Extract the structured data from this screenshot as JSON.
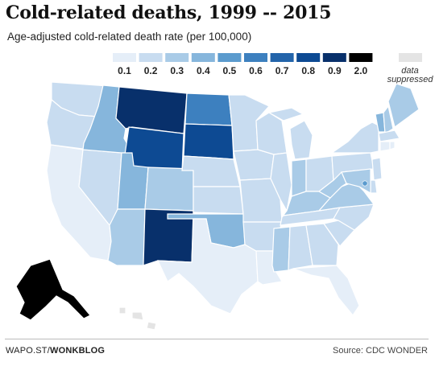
{
  "header": {
    "title": "Cold-related deaths, 1999 -- 2015",
    "subtitle": "Age-adjusted cold-related death rate (per 100,000)"
  },
  "legend": {
    "entries": [
      {
        "label": "0.1",
        "color": "#e5eef8"
      },
      {
        "label": "0.2",
        "color": "#c8dcf0"
      },
      {
        "label": "0.3",
        "color": "#a9cbe7"
      },
      {
        "label": "0.4",
        "color": "#86b6dc"
      },
      {
        "label": "0.5",
        "color": "#5b9bce"
      },
      {
        "label": "0.6",
        "color": "#3d80bf"
      },
      {
        "label": "0.7",
        "color": "#2364aa"
      },
      {
        "label": "0.8",
        "color": "#0d4a93"
      },
      {
        "label": "0.9",
        "color": "#08306b"
      },
      {
        "label": "2.0",
        "color": "#000000"
      }
    ],
    "suppressed": {
      "label_line1": "data",
      "label_line2": "suppressed",
      "color": "#e4e4e4"
    }
  },
  "map_data": {
    "states": [
      {
        "id": "WA",
        "rate": 0.2
      },
      {
        "id": "OR",
        "rate": 0.2
      },
      {
        "id": "CA",
        "rate": 0.1
      },
      {
        "id": "NV",
        "rate": 0.2
      },
      {
        "id": "ID",
        "rate": 0.4
      },
      {
        "id": "MT",
        "rate": 0.9
      },
      {
        "id": "WY",
        "rate": 0.8
      },
      {
        "id": "UT",
        "rate": 0.4
      },
      {
        "id": "AZ",
        "rate": 0.3
      },
      {
        "id": "CO",
        "rate": 0.3
      },
      {
        "id": "NM",
        "rate": 0.9
      },
      {
        "id": "ND",
        "rate": 0.6
      },
      {
        "id": "SD",
        "rate": 0.8
      },
      {
        "id": "NE",
        "rate": 0.2
      },
      {
        "id": "KS",
        "rate": 0.2
      },
      {
        "id": "OK",
        "rate": 0.4
      },
      {
        "id": "TX",
        "rate": 0.1
      },
      {
        "id": "MN",
        "rate": 0.2
      },
      {
        "id": "IA",
        "rate": 0.2
      },
      {
        "id": "MO",
        "rate": 0.2
      },
      {
        "id": "AR",
        "rate": 0.2
      },
      {
        "id": "LA",
        "rate": 0.1
      },
      {
        "id": "WI",
        "rate": 0.2
      },
      {
        "id": "IL",
        "rate": 0.2
      },
      {
        "id": "MI",
        "rate": 0.2
      },
      {
        "id": "IN",
        "rate": 0.3
      },
      {
        "id": "OH",
        "rate": 0.2
      },
      {
        "id": "KY",
        "rate": 0.3
      },
      {
        "id": "TN",
        "rate": 0.2
      },
      {
        "id": "MS",
        "rate": 0.3
      },
      {
        "id": "AL",
        "rate": 0.2
      },
      {
        "id": "GA",
        "rate": 0.2
      },
      {
        "id": "FL",
        "rate": 0.1
      },
      {
        "id": "SC",
        "rate": 0.2
      },
      {
        "id": "NC",
        "rate": 0.2
      },
      {
        "id": "VA",
        "rate": 0.3
      },
      {
        "id": "WV",
        "rate": 0.3
      },
      {
        "id": "PA",
        "rate": 0.2
      },
      {
        "id": "NY",
        "rate": 0.2
      },
      {
        "id": "VT",
        "rate": 0.4
      },
      {
        "id": "NH",
        "rate": 0.3
      },
      {
        "id": "ME",
        "rate": 0.3
      },
      {
        "id": "MA",
        "rate": 0.2
      },
      {
        "id": "CT",
        "rate": 0.1
      },
      {
        "id": "RI",
        "rate": 0.1
      },
      {
        "id": "NJ",
        "rate": 0.2
      },
      {
        "id": "DE",
        "rate": 0.2
      },
      {
        "id": "MD",
        "rate": 0.3
      },
      {
        "id": "DC",
        "rate": 0.5
      },
      {
        "id": "AK",
        "rate": 2.0
      },
      {
        "id": "HI",
        "rate": null
      }
    ]
  },
  "footer": {
    "source_prefix": "WAPO.ST/",
    "source_brand": "WONKBLOG",
    "credit": "Source: CDC WONDER"
  }
}
